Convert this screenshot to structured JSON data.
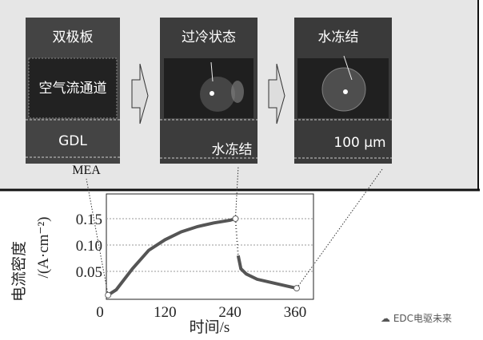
{
  "panels": [
    {
      "labels": [
        "双极板",
        "空气流通道",
        "GDL"
      ],
      "below_label": "MEA"
    },
    {
      "labels": [
        "过冷状态",
        "水冻结"
      ]
    },
    {
      "labels": [
        "水冻结",
        "100 μm"
      ]
    }
  ],
  "watermark": "EDC电驱未来",
  "chart_data": {
    "type": "line",
    "xlabel": "时间/s",
    "ylabel_line1": "电流密度",
    "ylabel_line2": "/(A·cm⁻²)",
    "x_ticks": [
      "0",
      "120",
      "240",
      "360"
    ],
    "y_ticks": [
      "0.05",
      "0.10",
      "0.15"
    ],
    "xlim": [
      0,
      400
    ],
    "ylim": [
      0,
      0.18
    ],
    "grid": "horizontal dotted",
    "series": [
      {
        "style": "solid",
        "x": [
          15,
          30,
          60,
          90,
          120,
          150,
          180,
          210,
          240,
          250
        ],
        "y": [
          0.005,
          0.015,
          0.055,
          0.09,
          0.11,
          0.125,
          0.135,
          0.142,
          0.147,
          0.15
        ]
      },
      {
        "style": "dotted",
        "x": [
          250,
          255
        ],
        "y": [
          0.15,
          0.08
        ]
      },
      {
        "style": "solid",
        "x": [
          255,
          260,
          270,
          290,
          320,
          345,
          363
        ],
        "y": [
          0.08,
          0.055,
          0.045,
          0.035,
          0.028,
          0.022,
          0.018
        ]
      }
    ],
    "markers": [
      {
        "x": 15,
        "y": 0.005
      },
      {
        "x": 250,
        "y": 0.15
      },
      {
        "x": 363,
        "y": 0.018
      }
    ],
    "line_color": "#555555"
  }
}
